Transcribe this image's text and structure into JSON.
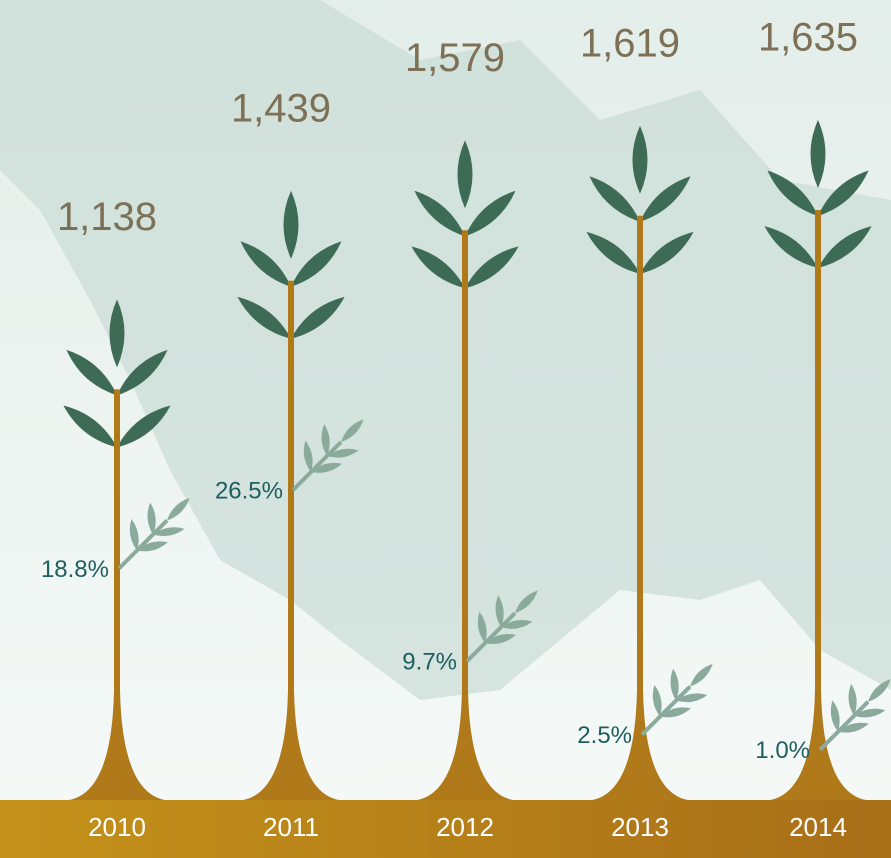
{
  "chart_data": {
    "type": "plant",
    "categories": [
      "2010",
      "2011",
      "2012",
      "2013",
      "2014"
    ],
    "series": [
      {
        "color": "#b07a1a",
        "values": [
          1138,
          1439,
          1579,
          1619,
          1635
        ],
        "value_labels": [
          "1,138",
          "1,439",
          "1,579",
          "1,619",
          "1,635"
        ]
      },
      {
        "color": "#8aab9c",
        "values": [
          18.8,
          26.5,
          9.7,
          2.5,
          1.0
        ],
        "value_labels": [
          "18.8%",
          "26.5%",
          "9.7%",
          "2.5%",
          "1.0%"
        ]
      }
    ]
  }
}
